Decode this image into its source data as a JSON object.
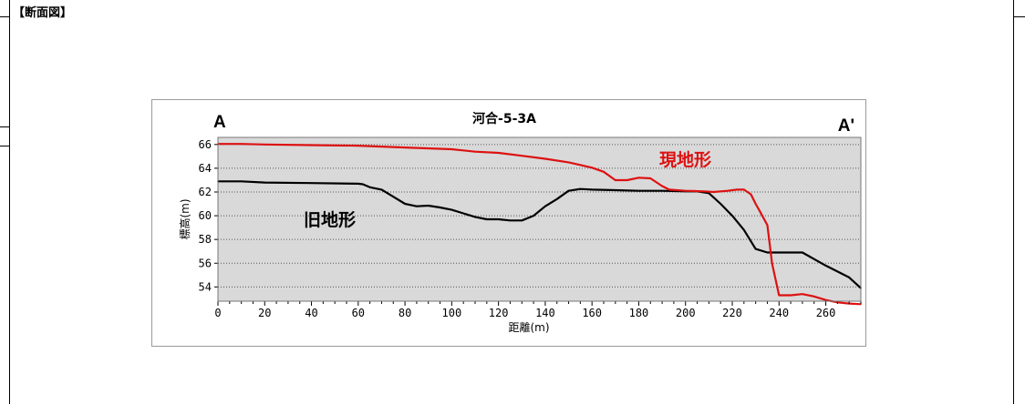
{
  "section_title": "【断面図】",
  "chart_data": {
    "type": "line",
    "title": "河合-5-3A",
    "corner_left": "A",
    "corner_right": "A'",
    "xlabel": "距離(m)",
    "ylabel": "標高(m)",
    "xlim": [
      0,
      275
    ],
    "ylim": [
      52.8,
      66.6
    ],
    "x_ticks": [
      0,
      20,
      40,
      60,
      80,
      100,
      120,
      140,
      160,
      180,
      200,
      220,
      240,
      260
    ],
    "y_ticks": [
      54,
      56,
      58,
      60,
      62,
      64,
      66
    ],
    "grid": true,
    "series": [
      {
        "name": "旧地形",
        "color": "#000000",
        "x": [
          0,
          10,
          20,
          40,
          60,
          62,
          65,
          70,
          75,
          80,
          85,
          90,
          95,
          100,
          105,
          110,
          115,
          120,
          125,
          130,
          135,
          140,
          145,
          150,
          155,
          160,
          170,
          180,
          190,
          200,
          205,
          210,
          215,
          220,
          225,
          230,
          235,
          240,
          250,
          260,
          270,
          275
        ],
        "y": [
          62.9,
          62.9,
          62.8,
          62.75,
          62.7,
          62.65,
          62.4,
          62.2,
          61.6,
          61.0,
          60.8,
          60.85,
          60.7,
          60.5,
          60.2,
          59.9,
          59.7,
          59.7,
          59.6,
          59.6,
          60.0,
          60.8,
          61.4,
          62.1,
          62.25,
          62.2,
          62.15,
          62.1,
          62.1,
          62.05,
          62.05,
          61.9,
          61.0,
          60.0,
          58.8,
          57.2,
          56.9,
          56.9,
          56.9,
          55.8,
          54.8,
          53.9
        ]
      },
      {
        "name": "現地形",
        "color": "#dd1111",
        "x": [
          0,
          10,
          20,
          40,
          60,
          80,
          100,
          110,
          120,
          130,
          140,
          150,
          160,
          165,
          170,
          175,
          180,
          185,
          190,
          193,
          200,
          208,
          212,
          218,
          222,
          225,
          228,
          230,
          232,
          235,
          237,
          240,
          245,
          250,
          255,
          260,
          265,
          270,
          275
        ],
        "y": [
          66.05,
          66.05,
          66.0,
          65.95,
          65.9,
          65.75,
          65.6,
          65.4,
          65.3,
          65.05,
          64.8,
          64.5,
          64.05,
          63.7,
          63.0,
          63.0,
          63.2,
          63.15,
          62.5,
          62.2,
          62.1,
          62.05,
          62.0,
          62.1,
          62.2,
          62.2,
          61.8,
          61.0,
          60.3,
          59.2,
          56.0,
          53.3,
          53.3,
          53.4,
          53.2,
          52.9,
          52.7,
          52.6,
          52.55
        ]
      }
    ]
  }
}
